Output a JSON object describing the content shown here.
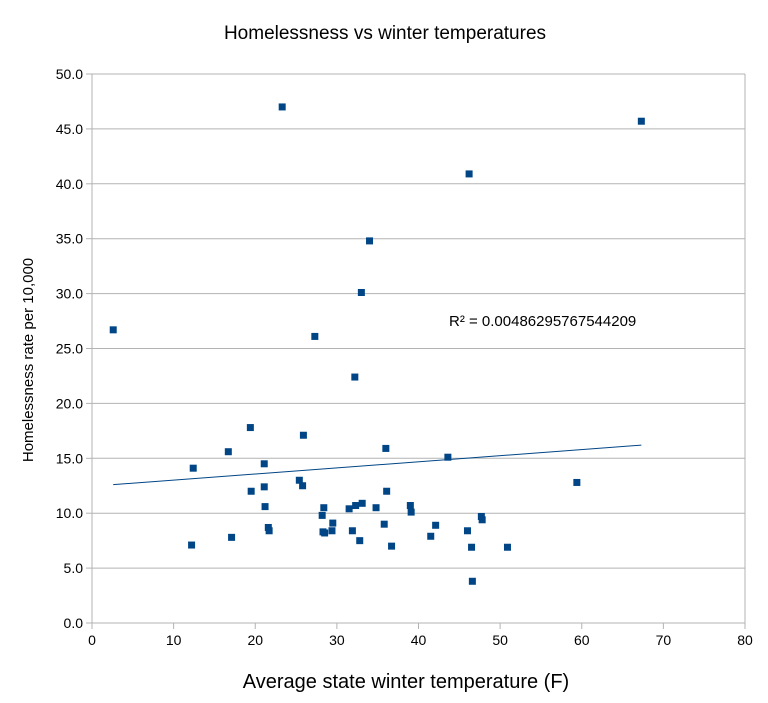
{
  "chart_data": {
    "type": "scatter",
    "title": "Homelessness vs winter temperatures",
    "xlabel": "Average state winter temperature (F)",
    "ylabel": "Homelessness rate per 10,000",
    "xlim": [
      0,
      80
    ],
    "ylim": [
      0,
      50
    ],
    "x_ticks": [
      "0",
      "10",
      "20",
      "30",
      "40",
      "50",
      "60",
      "70",
      "80"
    ],
    "y_ticks": [
      "0.0",
      "5.0",
      "10.0",
      "15.0",
      "20.0",
      "25.0",
      "30.0",
      "35.0",
      "40.0",
      "45.0",
      "50.0"
    ],
    "grid": "horizontal",
    "marker_color": "#004586",
    "trendline": {
      "type": "linear",
      "x": [
        2.6,
        67.3
      ],
      "y": [
        12.6,
        16.2
      ],
      "r_squared_label": "R² = 0.00486295767544209"
    },
    "series": [
      {
        "points": [
          [
            2.6,
            26.7
          ],
          [
            12.2,
            7.1
          ],
          [
            12.4,
            14.1
          ],
          [
            16.7,
            15.6
          ],
          [
            17.1,
            7.8
          ],
          [
            19.4,
            17.8
          ],
          [
            19.5,
            12.0
          ],
          [
            21.1,
            14.5
          ],
          [
            21.1,
            12.4
          ],
          [
            21.2,
            10.6
          ],
          [
            21.6,
            8.7
          ],
          [
            21.7,
            8.4
          ],
          [
            23.3,
            47.0
          ],
          [
            25.4,
            13.0
          ],
          [
            25.8,
            12.5
          ],
          [
            25.9,
            17.1
          ],
          [
            27.3,
            26.1
          ],
          [
            28.2,
            9.8
          ],
          [
            28.3,
            8.3
          ],
          [
            28.4,
            10.5
          ],
          [
            28.5,
            8.2
          ],
          [
            29.4,
            8.4
          ],
          [
            29.5,
            9.1
          ],
          [
            31.5,
            10.4
          ],
          [
            31.9,
            8.4
          ],
          [
            32.2,
            22.4
          ],
          [
            32.3,
            10.7
          ],
          [
            32.8,
            7.5
          ],
          [
            33.0,
            30.1
          ],
          [
            33.1,
            10.9
          ],
          [
            34.0,
            34.8
          ],
          [
            34.8,
            10.5
          ],
          [
            35.8,
            9.0
          ],
          [
            36.0,
            15.9
          ],
          [
            36.1,
            12.0
          ],
          [
            36.7,
            7.0
          ],
          [
            39.0,
            10.7
          ],
          [
            39.1,
            10.1
          ],
          [
            41.5,
            7.9
          ],
          [
            42.1,
            8.9
          ],
          [
            43.6,
            15.1
          ],
          [
            46.0,
            8.4
          ],
          [
            46.2,
            40.9
          ],
          [
            46.5,
            6.9
          ],
          [
            46.6,
            3.8
          ],
          [
            47.7,
            9.7
          ],
          [
            47.8,
            9.4
          ],
          [
            50.9,
            6.9
          ],
          [
            59.4,
            12.8
          ],
          [
            67.3,
            45.7
          ]
        ]
      }
    ]
  }
}
